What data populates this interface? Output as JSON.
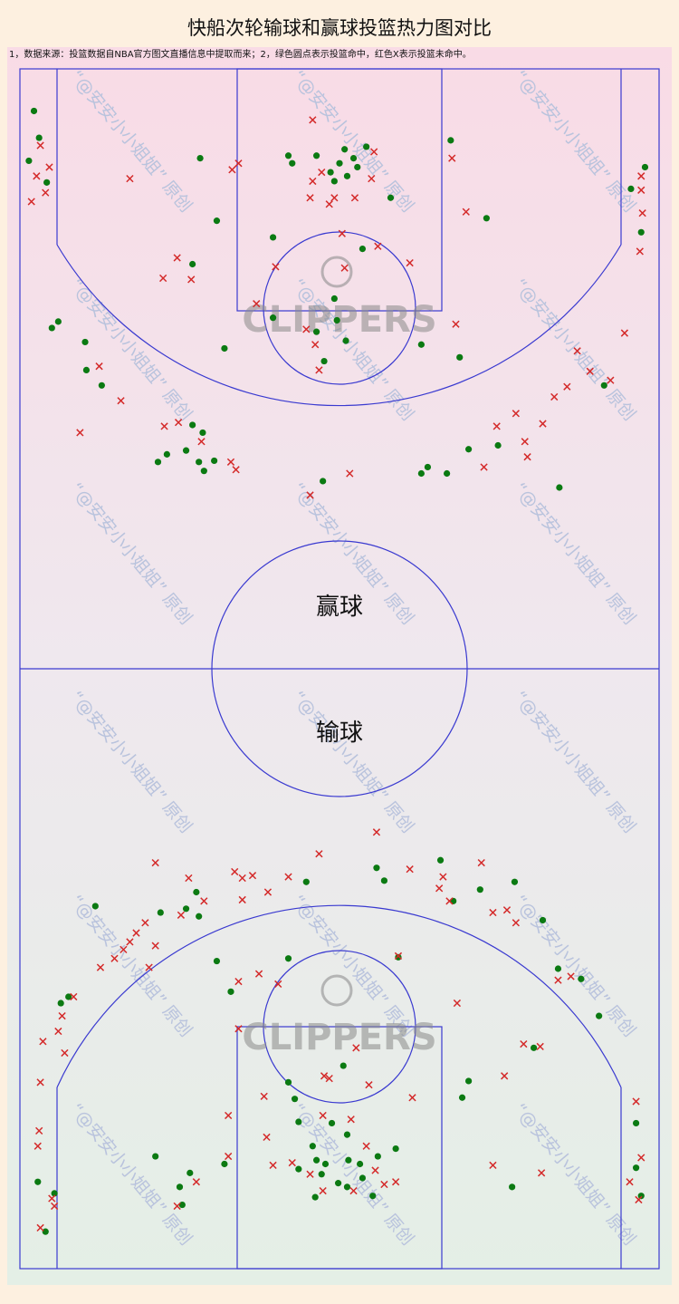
{
  "chart_data": {
    "type": "scatter",
    "title": "快船次轮输球和赢球投篮热力图对比",
    "note": "1，数据来源：投篮数据自NBA官方图文直播信息中提取而来；2，绿色圆点表示投篮命中，红色X表示投篮未命中。",
    "watermark": "“@安安小小姐姐” 原创",
    "logo_text": "CLIPPERS",
    "labels": [
      "赢球",
      "输球"
    ],
    "xlim": [
      0,
      50
    ],
    "ylim": [
      0,
      94
    ],
    "series": [
      {
        "marker": "circle",
        "color": "#0b7a12",
        "x": [
          1.1,
          1.5,
          0.7,
          2.1,
          14.1,
          15.4,
          13.5,
          19.8,
          19.8,
          2.5,
          3.0,
          5.1,
          5.2,
          6.4,
          16.0,
          10.8,
          11.5,
          13.0,
          13.5,
          14.3,
          14.0,
          15.2,
          14.4,
          23.7,
          31.4,
          31.9,
          33.4,
          35.1,
          37.4,
          42.2,
          45.7,
          31.4,
          34.4,
          33.7,
          36.5,
          47.8,
          48.9,
          48.6,
          29.0,
          26.8,
          24.6,
          23.8,
          25.5,
          23.2,
          24.8,
          25.0,
          25.4,
          24.3,
          26.1,
          23.2,
          21.0,
          21.3,
          26.4,
          27.1,
          25.6,
          24.6
        ],
        "y": [
          3.3,
          5.4,
          7.2,
          8.9,
          7.0,
          11.9,
          15.3,
          13.2,
          19.5,
          20.3,
          19.8,
          21.4,
          23.6,
          24.8,
          21.9,
          30.8,
          30.2,
          29.9,
          27.9,
          28.5,
          30.8,
          30.7,
          31.5,
          32.3,
          31.7,
          31.2,
          31.7,
          29.8,
          29.5,
          32.8,
          24.8,
          21.6,
          22.6,
          5.6,
          11.7,
          9.4,
          7.7,
          12.8,
          10.1,
          14.1,
          18.0,
          22.9,
          21.3,
          20.6,
          19.7,
          7.4,
          6.3,
          8.1,
          7.0,
          6.8,
          6.8,
          7.4,
          7.7,
          6.1,
          8.4,
          8.8
        ]
      },
      {
        "marker": "x",
        "color": "#d42a2a",
        "x": [
          1.6,
          1.3,
          2.3,
          0.9,
          2.0,
          8.6,
          16.6,
          17.1,
          12.3,
          11.2,
          13.4,
          20.0,
          18.5,
          6.2,
          7.9,
          4.7,
          11.3,
          12.4,
          14.2,
          16.5,
          16.9,
          25.8,
          22.7,
          22.9,
          25.2,
          25.4,
          23.4,
          23.1,
          22.4,
          28.0,
          30.5,
          33.8,
          34.9,
          34.1,
          47.3,
          43.6,
          44.6,
          42.8,
          41.8,
          40.9,
          39.5,
          37.3,
          38.8,
          39.7,
          36.3,
          46.2,
          48.6,
          48.6,
          48.7,
          48.5,
          27.7,
          27.5,
          26.2,
          24.6,
          22.7,
          22.9,
          23.6,
          24.2
        ],
        "y": [
          6.0,
          8.4,
          7.7,
          10.4,
          9.7,
          8.6,
          7.9,
          7.4,
          14.8,
          16.4,
          16.5,
          15.5,
          18.4,
          23.3,
          26.0,
          28.5,
          28.0,
          27.7,
          29.2,
          30.8,
          31.4,
          31.7,
          33.4,
          4.0,
          12.9,
          15.6,
          23.6,
          21.6,
          20.4,
          13.9,
          15.2,
          7.0,
          11.2,
          20.0,
          20.7,
          22.1,
          23.7,
          24.9,
          25.7,
          27.8,
          29.2,
          28.0,
          27.0,
          30.4,
          31.2,
          24.4,
          8.4,
          9.5,
          11.3,
          14.3,
          6.5,
          8.6,
          10.1,
          10.1,
          10.1,
          8.8,
          8.1,
          10.6
        ]
      },
      {
        "marker": "circle",
        "color": "#0b7a12",
        "x": [
          5.9,
          11.0,
          13.0,
          14.0,
          13.8,
          22.4,
          27.9,
          28.5,
          32.9,
          33.9,
          36.0,
          38.7,
          40.9,
          42.1,
          43.9,
          45.3,
          40.2,
          15.4,
          16.5,
          21.0,
          29.6,
          3.2,
          3.8,
          25.3,
          21.0,
          21.5,
          35.1,
          34.6,
          10.6,
          12.5,
          13.3,
          12.7,
          2.0,
          1.4,
          2.7,
          48.2,
          48.2,
          48.6,
          38.5,
          29.4,
          25.6,
          22.9,
          23.2,
          23.9,
          21.8,
          25.7,
          26.6,
          28.0,
          24.9,
          23.1,
          23.6,
          25.6,
          26.8,
          27.6,
          16.0,
          21.8,
          24.4
        ],
        "y": [
          65.6,
          66.1,
          65.8,
          66.4,
          64.5,
          63.7,
          62.6,
          63.6,
          62.0,
          65.2,
          64.3,
          63.7,
          66.7,
          70.5,
          71.3,
          74.2,
          76.7,
          69.9,
          72.3,
          69.7,
          69.6,
          73.2,
          72.7,
          78.1,
          79.4,
          80.7,
          79.3,
          80.6,
          85.2,
          87.6,
          86.5,
          89.0,
          91.1,
          87.2,
          88.1,
          82.6,
          86.1,
          88.3,
          87.6,
          84.6,
          83.5,
          84.4,
          85.5,
          85.8,
          86.2,
          85.5,
          85.8,
          85.2,
          87.3,
          88.4,
          86.6,
          87.6,
          86.9,
          88.3,
          85.8,
          82.5,
          82.6
        ]
      },
      {
        "marker": "x",
        "color": "#d42a2a",
        "x": [
          27.9,
          23.4,
          10.6,
          13.2,
          16.8,
          17.4,
          18.2,
          21.0,
          19.4,
          17.4,
          14.4,
          12.6,
          9.8,
          9.1,
          8.6,
          8.1,
          7.4,
          6.3,
          10.6,
          10.1,
          4.2,
          3.3,
          3.0,
          1.8,
          3.5,
          1.6,
          1.5,
          1.4,
          2.5,
          1.6,
          2.7,
          12.3,
          13.8,
          16.3,
          16.3,
          17.1,
          17.1,
          18.7,
          20.2,
          26.3,
          23.8,
          24.2,
          27.3,
          30.7,
          23.7,
          25.9,
          27.1,
          19.3,
          21.3,
          19.8,
          22.7,
          23.7,
          26.1,
          27.8,
          28.5,
          29.4,
          19.1,
          30.5,
          33.1,
          32.8,
          36.1,
          33.6,
          37.0,
          38.1,
          38.8,
          42.1,
          43.1,
          34.2,
          39.4,
          40.7,
          37.9,
          37.0,
          40.8,
          48.2,
          48.6,
          48.4,
          47.7,
          29.6
        ],
        "y": [
          59.8,
          61.5,
          62.2,
          63.4,
          62.9,
          63.4,
          63.2,
          63.3,
          64.5,
          65.1,
          65.2,
          66.3,
          66.9,
          67.7,
          68.4,
          69.0,
          69.7,
          70.4,
          68.7,
          70.4,
          72.7,
          74.2,
          75.4,
          76.2,
          77.1,
          79.4,
          83.2,
          84.4,
          88.5,
          90.8,
          89.1,
          89.1,
          87.2,
          85.2,
          82.0,
          75.2,
          71.5,
          70.9,
          71.7,
          76.7,
          78.9,
          79.1,
          79.6,
          80.6,
          82.0,
          82.3,
          84.4,
          83.7,
          85.7,
          85.9,
          86.6,
          87.9,
          87.9,
          86.3,
          87.4,
          87.2,
          80.5,
          62.7,
          63.3,
          64.2,
          62.2,
          65.2,
          66.1,
          65.9,
          66.9,
          71.4,
          71.1,
          73.2,
          76.4,
          76.6,
          78.9,
          85.9,
          86.5,
          80.9,
          85.3,
          88.6,
          87.2,
          69.5
        ]
      }
    ]
  }
}
